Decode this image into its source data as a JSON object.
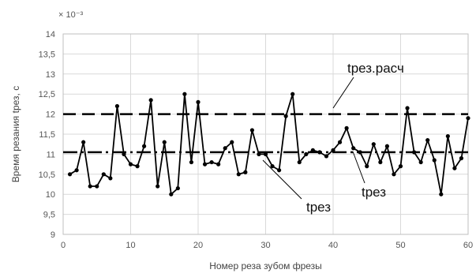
{
  "chart_data": {
    "type": "line",
    "xlabel": "Номер реза зубом фрезы",
    "ylabel": "Время резания tрез, с",
    "y_multiplier": "× 10⁻³",
    "xlim": [
      0,
      60
    ],
    "ylim": [
      9,
      14
    ],
    "xticks": [
      0,
      10,
      20,
      30,
      40,
      50,
      60
    ],
    "xtick_labels": [
      "0",
      "10",
      "20",
      "30",
      "40",
      "50",
      "60"
    ],
    "yticks": [
      9,
      9.5,
      10,
      10.5,
      11,
      11.5,
      12,
      12.5,
      13,
      13.5,
      14
    ],
    "ytick_labels": [
      "9",
      "9,5",
      "10",
      "10,5",
      "11",
      "11,5",
      "12",
      "12,5",
      "13",
      "13,5",
      "14"
    ],
    "grid": true,
    "series": [
      {
        "name": "tрез",
        "color": "#000000",
        "marker": "circle",
        "x": [
          1,
          2,
          3,
          4,
          5,
          6,
          7,
          8,
          9,
          10,
          11,
          12,
          13,
          14,
          15,
          16,
          17,
          18,
          19,
          20,
          21,
          22,
          23,
          24,
          25,
          26,
          27,
          28,
          29,
          30,
          31,
          32,
          33,
          34,
          35,
          36,
          37,
          38,
          39,
          40,
          41,
          42,
          43,
          44,
          45,
          46,
          47,
          48,
          49,
          50,
          51,
          52,
          53,
          54,
          55,
          56,
          57,
          58,
          59,
          60
        ],
        "y": [
          10.5,
          10.6,
          11.3,
          10.2,
          10.2,
          10.5,
          10.4,
          12.2,
          11.0,
          10.75,
          10.7,
          11.2,
          12.35,
          10.2,
          11.3,
          10.0,
          10.15,
          12.5,
          10.8,
          12.3,
          10.75,
          10.8,
          10.75,
          11.15,
          11.3,
          10.5,
          10.55,
          11.6,
          11.0,
          11.0,
          10.7,
          10.6,
          11.95,
          12.5,
          10.8,
          11.0,
          11.1,
          11.05,
          10.95,
          11.1,
          11.3,
          11.65,
          11.15,
          11.05,
          10.7,
          11.25,
          10.8,
          11.2,
          10.5,
          10.7,
          12.15,
          11.05,
          10.8,
          11.35,
          10.85,
          10.0,
          11.45,
          10.65,
          10.9,
          11.9
        ]
      }
    ],
    "reference_lines": [
      {
        "name": "tрез.расч",
        "y": 12.0,
        "style": "dashed",
        "color": "#000000"
      },
      {
        "name": "tрез",
        "y": 11.05,
        "style": "dash-dot",
        "color": "#000000"
      }
    ],
    "annotations": [
      {
        "text": "tрез.расч",
        "points_to": "upper dashed line"
      },
      {
        "text": "tрез",
        "points_to": "data series"
      },
      {
        "text": "tрез",
        "points_to": "mean dash-dot line"
      }
    ]
  }
}
